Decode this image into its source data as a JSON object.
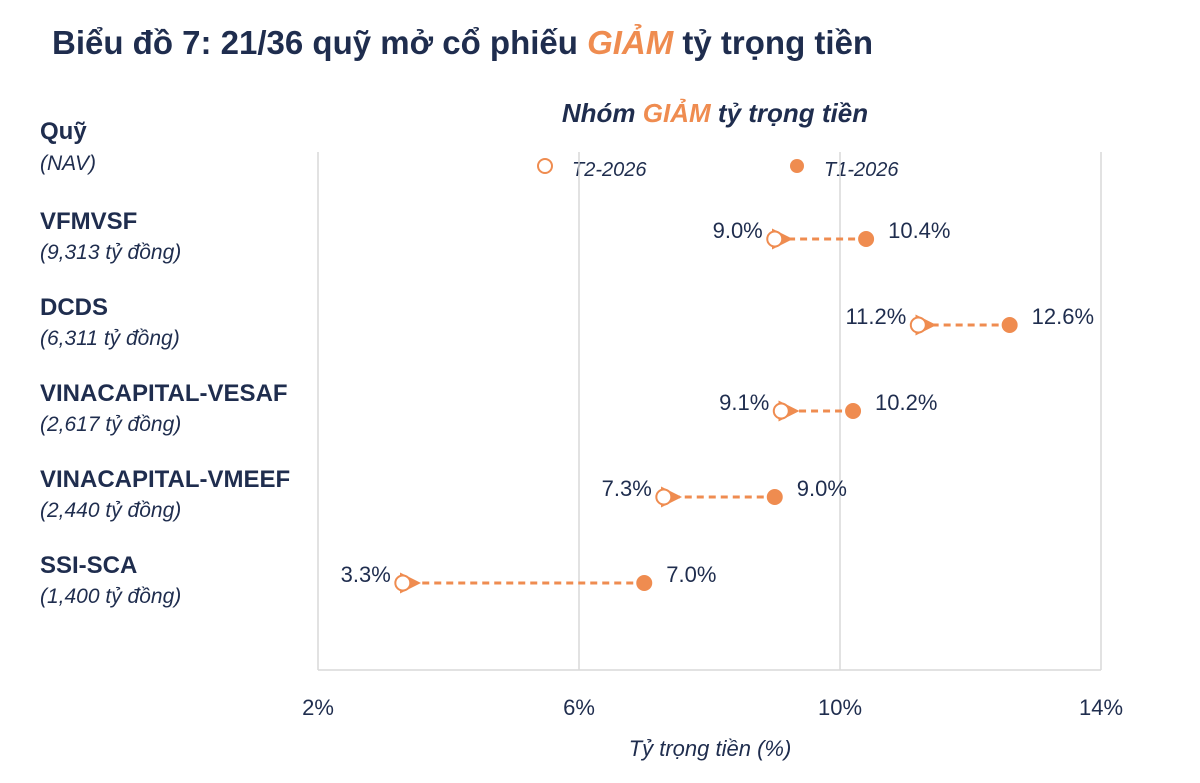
{
  "title": {
    "prefix": "Biểu đồ 7: 21/36 quỹ mở cổ phiếu",
    "highlight": "GIẢM",
    "suffix": "tỷ trọng tiền"
  },
  "colors": {
    "navy": "#1f2d4e",
    "accent": "#ef8c50",
    "grid": "#d9d9d9"
  },
  "chart_data": {
    "type": "scatter",
    "subtitle": {
      "prefix": "Nhóm",
      "highlight": "GIẢM",
      "suffix": "tỷ trọng tiền"
    },
    "ylabel_title": "Quỹ",
    "ylabel_subtitle": "(NAV)",
    "xlabel": "Tỷ trọng tiền (%)",
    "xlim": [
      2,
      14
    ],
    "xticks": [
      2,
      6,
      10,
      14
    ],
    "xtick_labels": [
      "2%",
      "6%",
      "10%",
      "14%"
    ],
    "grid": true,
    "legend_position": "top",
    "series": [
      {
        "name": "T2-2026",
        "marker": "open-circle",
        "values": [
          9.0,
          11.2,
          9.1,
          7.3,
          3.3
        ],
        "labels": [
          "9.0%",
          "11.2%",
          "9.1%",
          "7.3%",
          "3.3%"
        ]
      },
      {
        "name": "T1-2026",
        "marker": "filled-circle",
        "values": [
          10.4,
          12.6,
          10.2,
          9.0,
          7.0
        ],
        "labels": [
          "10.4%",
          "12.6%",
          "10.2%",
          "9.0%",
          "7.0%"
        ]
      }
    ],
    "categories": [
      {
        "name": "VFMVSF",
        "nav": "(9,313 tỷ đồng)"
      },
      {
        "name": "DCDS",
        "nav": "(6,311 tỷ đồng)"
      },
      {
        "name": "VINACAPITAL-VESAF",
        "nav": "(2,617 tỷ đồng)"
      },
      {
        "name": "VINACAPITAL-VMEEF",
        "nav": "(2,440 tỷ đồng)"
      },
      {
        "name": "SSI-SCA",
        "nav": "(1,400 tỷ đồng)"
      }
    ]
  }
}
